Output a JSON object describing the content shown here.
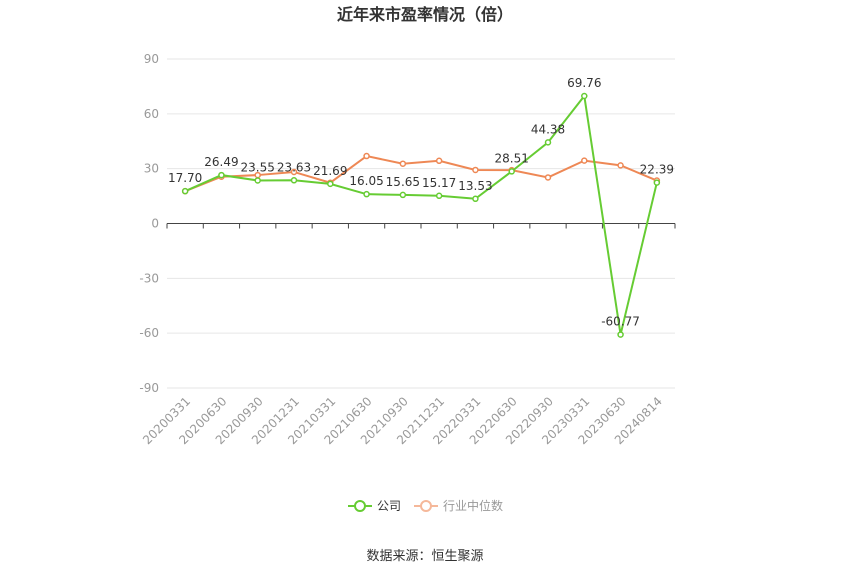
{
  "chart_data": {
    "type": "line",
    "title": "近年来市盈率情况（倍）",
    "categories": [
      "20200331",
      "20200630",
      "20200930",
      "20201231",
      "20210331",
      "20210630",
      "20210930",
      "20211231",
      "20220331",
      "20220630",
      "20220930",
      "20230331",
      "20230630",
      "20240814"
    ],
    "series": [
      {
        "name": "公司",
        "color": "#66cc33",
        "values": [
          17.7,
          26.49,
          23.55,
          23.63,
          21.69,
          16.05,
          15.65,
          15.17,
          13.53,
          28.51,
          44.38,
          69.76,
          -60.77,
          22.39
        ],
        "labels": [
          "17.70",
          "26.49",
          "23.55",
          "23.63",
          "21.69",
          "16.05",
          "15.65",
          "15.17",
          "13.53",
          "28.51",
          "44.38",
          "69.76",
          "-60.77",
          "22.39"
        ]
      },
      {
        "name": "行业中位数",
        "color": "#ee8855",
        "values": [
          17.7,
          25.6,
          26.5,
          28.2,
          22.3,
          36.9,
          32.7,
          34.3,
          29.3,
          29.2,
          25.2,
          34.4,
          31.8,
          23.5
        ]
      }
    ],
    "yticks": [
      "90",
      "60",
      "30",
      "0",
      "-30",
      "-60",
      "-90"
    ],
    "ylim": [
      -90,
      90
    ],
    "grid": true,
    "legend_position": "bottom-center"
  },
  "footer": {
    "source": "数据来源：恒生聚源"
  }
}
